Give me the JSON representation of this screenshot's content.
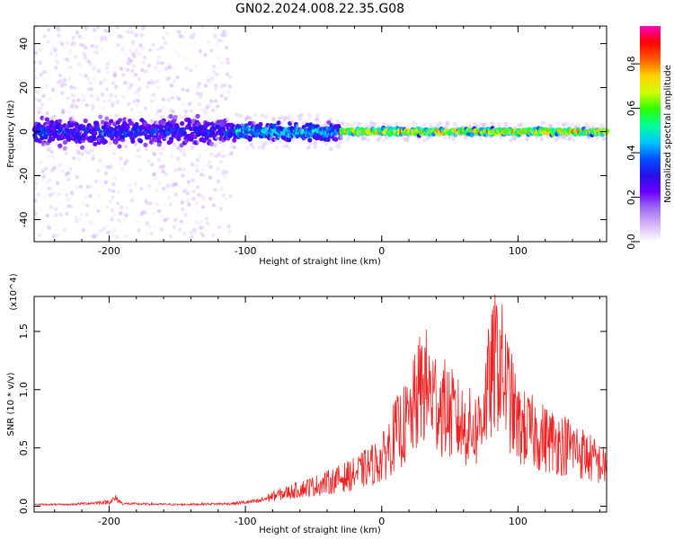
{
  "title": "GN02.2024.008.22.35.G08",
  "chart_data": [
    {
      "type": "heatmap",
      "xlabel": "Height of straight line (km)",
      "ylabel": "Frequency (Hz)",
      "xlim": [
        -255,
        165
      ],
      "ylim": [
        -50,
        48
      ],
      "xticks": [
        -200,
        -100,
        0,
        100
      ],
      "yticks": [
        -40,
        -20,
        0,
        20,
        40
      ],
      "colorbar": {
        "label": "Normalized spectral amplitude",
        "range": [
          0,
          0.97
        ],
        "ticks": [
          "0.0",
          "0.2",
          "0.4",
          "0.6",
          "0.8"
        ],
        "colormap": [
          "#ffffff",
          "#d8b8f8",
          "#a070f0",
          "#6a00ff",
          "#2a10e8",
          "#0050ff",
          "#00c8ff",
          "#00ff9a",
          "#30ff00",
          "#d0ff00",
          "#ffd000",
          "#ff5a00",
          "#ff0000",
          "#ff00c0"
        ]
      },
      "bands": [
        {
          "x_from": -255,
          "x_to": -110,
          "center_hz": 0,
          "core_halfwidth_hz": 8,
          "scatter_halfwidth_hz": 48,
          "peak_amplitude": 0.4
        },
        {
          "x_from": -110,
          "x_to": -30,
          "center_hz": 0,
          "core_halfwidth_hz": 5,
          "scatter_halfwidth_hz": 8,
          "peak_amplitude": 0.55
        },
        {
          "x_from": -30,
          "x_to": 165,
          "center_hz": 0,
          "core_halfwidth_hz": 2,
          "scatter_halfwidth_hz": 4,
          "peak_amplitude": 0.9
        }
      ]
    },
    {
      "type": "line",
      "xlabel": "Height of straight line (km)",
      "ylabel": "SNR (10 * v/v)",
      "y_multiplier": "(x10^4)",
      "xlim": [
        -255,
        165
      ],
      "ylim": [
        -0.05,
        1.8
      ],
      "xticks": [
        -200,
        -100,
        0,
        100
      ],
      "yticks": [
        0.0,
        0.5,
        1.0,
        1.5
      ],
      "series": [
        {
          "color": "#ee2222",
          "x": [
            -255,
            -230,
            -200,
            -195,
            -190,
            -150,
            -110,
            -90,
            -80,
            -60,
            -40,
            -20,
            0,
            10,
            20,
            30,
            40,
            50,
            60,
            70,
            80,
            85,
            100,
            120,
            140,
            165
          ],
          "y": [
            0.02,
            0.02,
            0.05,
            0.09,
            0.03,
            0.02,
            0.03,
            0.06,
            0.12,
            0.2,
            0.28,
            0.38,
            0.55,
            0.85,
            1.0,
            1.45,
            1.25,
            1.1,
            0.95,
            0.9,
            1.5,
            1.78,
            0.95,
            0.8,
            0.7,
            0.45
          ]
        }
      ]
    }
  ]
}
